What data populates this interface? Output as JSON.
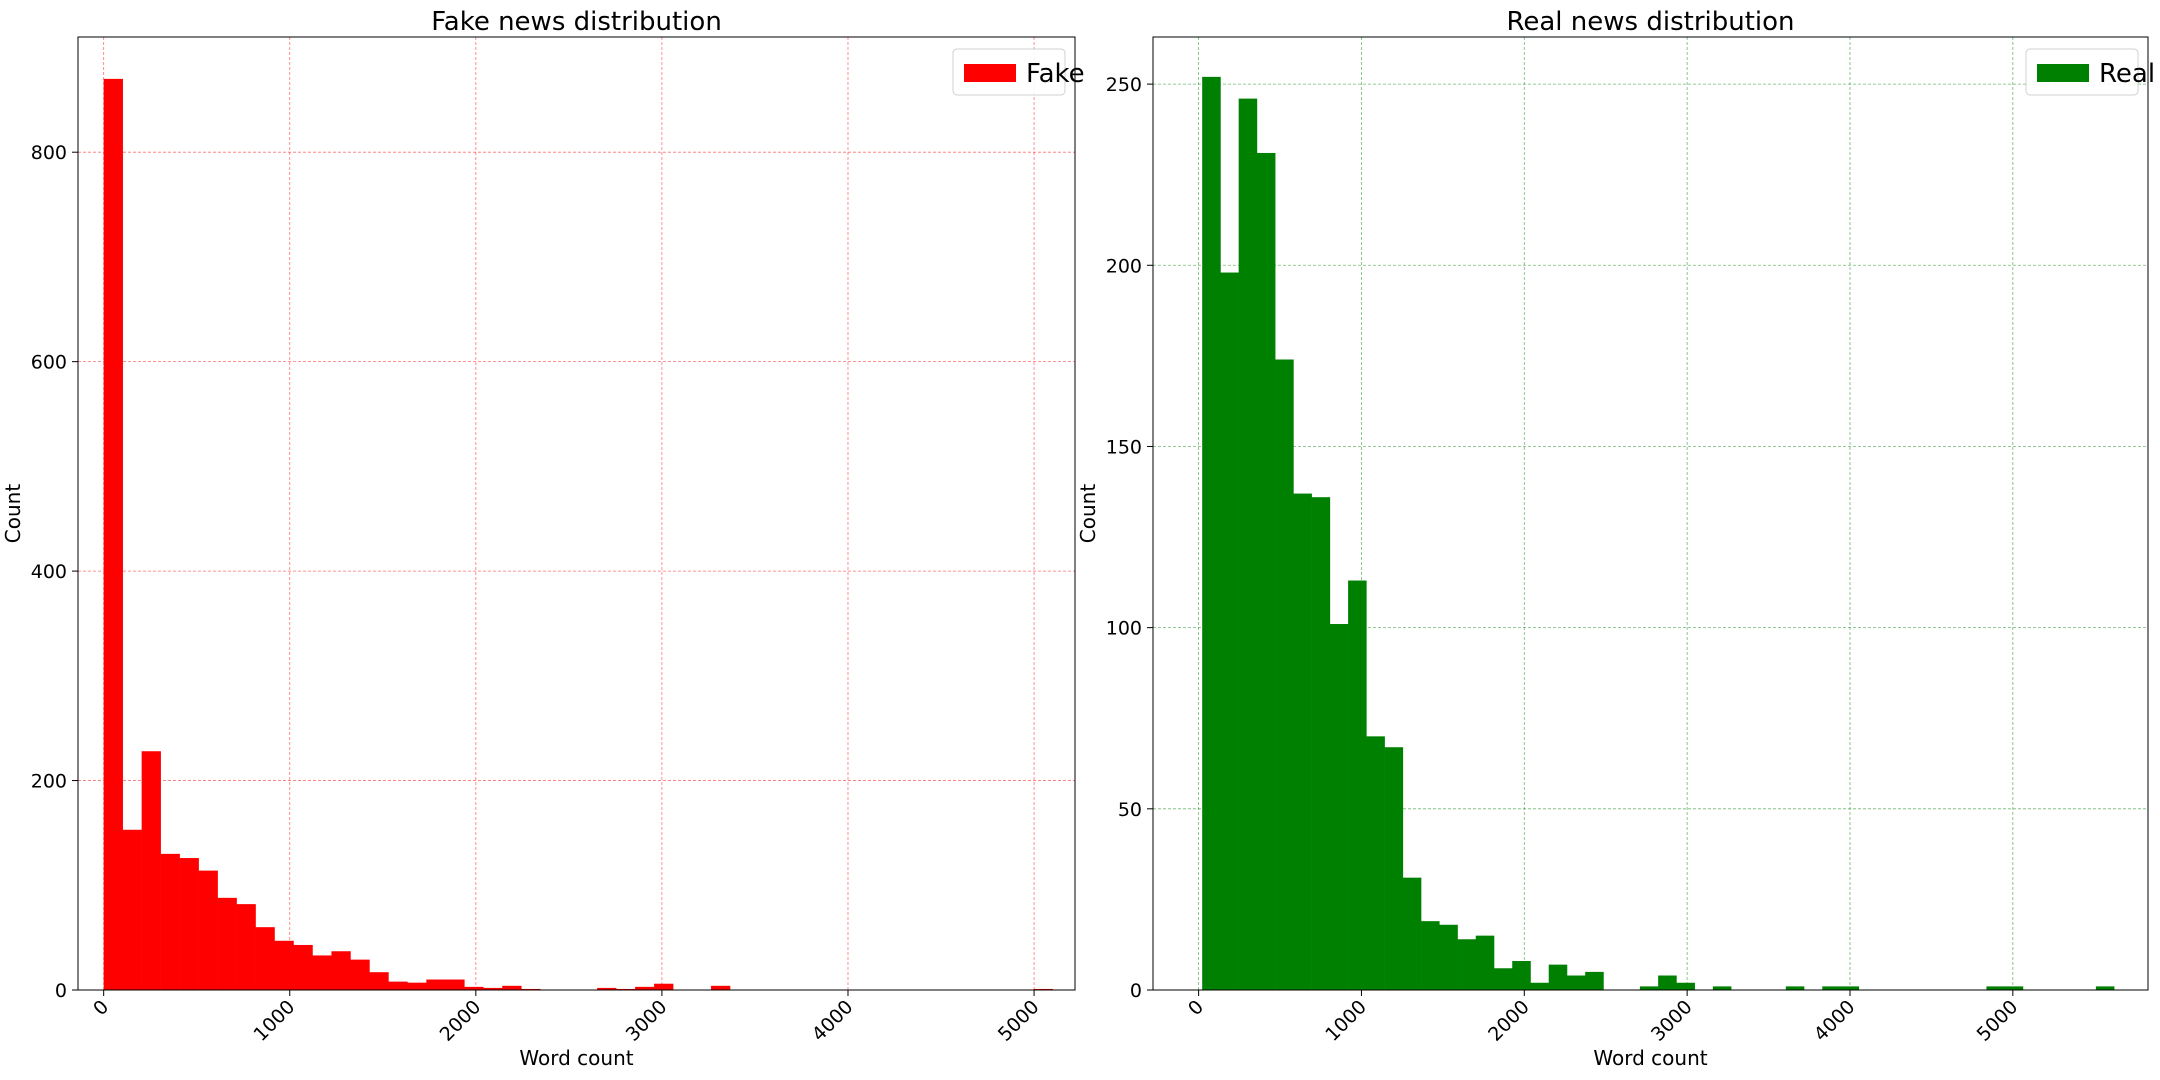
{
  "colors": {
    "fake": "#ff0000",
    "real": "#008000"
  },
  "chart_data": [
    {
      "type": "bar",
      "title": "Fake news distribution",
      "xlabel": "Word count",
      "ylabel": "Count",
      "xlim": [
        -138,
        5220
      ],
      "ylim": [
        0,
        910
      ],
      "xticks": [
        0,
        1000,
        2000,
        3000,
        4000,
        5000
      ],
      "yticks": [
        0,
        200,
        400,
        600,
        800
      ],
      "grid": true,
      "grid_color": "#ff0000",
      "legend": {
        "position": "top-right",
        "entries": [
          "Fake"
        ]
      },
      "bin_width": 102,
      "series": [
        {
          "name": "Fake",
          "color": "#ff0000",
          "bin_starts": [
            0,
            102,
            204,
            306,
            408,
            510,
            612,
            714,
            816,
            918,
            1020,
            1122,
            1224,
            1326,
            1428,
            1530,
            1632,
            1734,
            1836,
            1938,
            2040,
            2142,
            2244,
            2346,
            2448,
            2550,
            2652,
            2754,
            2856,
            2958,
            3060,
            3162,
            3264,
            3366,
            3468,
            3570,
            3672,
            3774,
            3876,
            3978,
            4080,
            4182,
            4284,
            4386,
            4488,
            4590,
            4692,
            4794,
            4896,
            4998
          ],
          "values": [
            870,
            153,
            228,
            130,
            126,
            114,
            88,
            82,
            60,
            47,
            43,
            33,
            37,
            29,
            17,
            8,
            7,
            10,
            10,
            3,
            2,
            4,
            1,
            0,
            0,
            0,
            2,
            1,
            3,
            6,
            0,
            0,
            4,
            0,
            0,
            0,
            0,
            0,
            0,
            0,
            0,
            0,
            0,
            0,
            0,
            0,
            0,
            0,
            0,
            1
          ]
        }
      ]
    },
    {
      "type": "bar",
      "title": "Real news distribution",
      "xlabel": "Word count",
      "ylabel": "Count",
      "xlim": [
        -280,
        5830
      ],
      "ylim": [
        0,
        263
      ],
      "xticks": [
        0,
        1000,
        2000,
        3000,
        4000,
        5000
      ],
      "yticks": [
        0,
        50,
        100,
        150,
        200,
        250
      ],
      "grid": true,
      "grid_color": "#008000",
      "legend": {
        "position": "top-right",
        "entries": [
          "Real"
        ]
      },
      "bin_width": 112,
      "series": [
        {
          "name": "Real",
          "color": "#008000",
          "bin_starts": [
            22,
            134,
            246,
            358,
            470,
            582,
            694,
            806,
            918,
            1030,
            1142,
            1254,
            1366,
            1478,
            1590,
            1702,
            1814,
            1926,
            2038,
            2150,
            2262,
            2374,
            2486,
            2598,
            2710,
            2822,
            2934,
            3046,
            3158,
            3270,
            3382,
            3494,
            3606,
            3718,
            3830,
            3942,
            4054,
            4166,
            4278,
            4390,
            4502,
            4614,
            4726,
            4838,
            4950,
            5062,
            5174,
            5286,
            5398,
            5510
          ],
          "values": [
            252,
            198,
            246,
            231,
            174,
            137,
            136,
            101,
            113,
            70,
            67,
            31,
            19,
            18,
            14,
            15,
            6,
            8,
            2,
            7,
            4,
            5,
            0,
            0,
            1,
            4,
            2,
            0,
            1,
            0,
            0,
            0,
            1,
            0,
            1,
            1,
            0,
            0,
            0,
            0,
            0,
            0,
            0,
            1,
            1,
            0,
            0,
            0,
            0,
            1
          ]
        }
      ]
    }
  ]
}
